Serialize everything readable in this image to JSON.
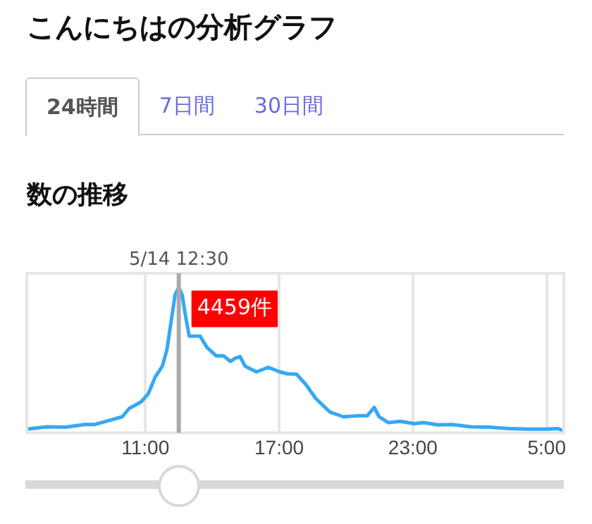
{
  "chart_data": {
    "type": "line",
    "title": "こんにちはの分析グラフ",
    "subtitle": "数の推移",
    "annotations": [
      "24時間",
      "7日間",
      "30日間"
    ],
    "x": [
      "--05-14T05:42",
      "--05-14T06:35",
      "--05-14T07:26",
      "--05-14T08:16",
      "--05-14T08:42",
      "--05-14T09:20",
      "--05-14T09:58",
      "--05-14T10:17",
      "--05-14T10:49",
      "--05-14T11:08",
      "--05-14T11:26",
      "--05-14T11:46",
      "--05-14T11:58",
      "--05-14T12:11",
      "--05-14T12:20",
      "--05-14T12:30",
      "--05-14T12:39",
      "--05-14T12:49",
      "--05-14T12:58",
      "--05-14T13:27",
      "--05-14T13:46",
      "--05-14T14:11",
      "--05-14T14:31",
      "--05-14T14:49",
      "--05-14T15:02",
      "--05-14T15:15",
      "--05-14T15:28",
      "--05-14T15:59",
      "--05-14T16:31",
      "--05-14T17:02",
      "--05-14T17:22",
      "--05-14T17:47",
      "--05-14T18:12",
      "--05-14T18:38",
      "--05-14T19:16",
      "--05-14T19:53",
      "--05-14T20:32",
      "--05-14T20:57",
      "--05-14T21:16",
      "--05-14T21:29",
      "--05-14T21:54",
      "--05-14T22:26",
      "--05-14T23:04",
      "--05-14T23:29",
      "--05-15T00:07",
      "--05-15T00:45",
      "--05-15T01:36",
      "--05-15T02:26",
      "--05-15T03:17",
      "--05-15T04:08",
      "--05-15T04:59",
      "--05-15T05:31",
      "--05-15T05:45"
    ],
    "series": [
      {
        "color": "#35a8f5",
        "values": [
          110,
          180,
          170,
          250,
          250,
          370,
          490,
          750,
          950,
          1200,
          1700,
          2050,
          2550,
          3540,
          4240,
          4459,
          4240,
          3540,
          2970,
          2970,
          2620,
          2360,
          2360,
          2190,
          2290,
          2340,
          2050,
          1870,
          2010,
          1870,
          1810,
          1800,
          1480,
          1060,
          640,
          490,
          520,
          520,
          780,
          490,
          310,
          350,
          280,
          310,
          240,
          250,
          180,
          170,
          130,
          110,
          110,
          130,
          40
        ],
        "value_labels": [
          null,
          null,
          null,
          null,
          null,
          null,
          null,
          null,
          null,
          null,
          null,
          null,
          null,
          null,
          null,
          "4459件",
          null,
          null,
          null,
          null,
          null,
          null,
          null,
          null,
          null,
          null,
          null,
          null,
          null,
          null,
          null,
          null,
          null,
          null,
          null,
          null,
          null,
          null,
          null,
          null,
          null,
          null,
          null,
          null,
          null,
          null,
          null,
          null,
          null,
          null,
          null,
          null,
          null
        ]
      }
    ],
    "xlim": [
      "--05-14T05:41",
      "--05-15T05:46"
    ],
    "xticks": [
      {
        "value": "--05-14T11:00",
        "label": "11:00"
      },
      {
        "value": "--05-14T17:00",
        "label": "17:00"
      },
      {
        "value": "--05-14T23:00",
        "label": "23:00"
      },
      {
        "value": "--05-15T05:00",
        "label": "5:00"
      }
    ],
    "ylim": [
      0,
      4900
    ],
    "tick_labels": "x",
    "ref_lines": [
      {
        "axis": "x",
        "value": "--05-14T12:30",
        "label": "5/14 12:30",
        "color": "#aaaaaa"
      }
    ],
    "grid": "x",
    "legend": false,
    "marker": "none",
    "line_style": "solid"
  }
}
